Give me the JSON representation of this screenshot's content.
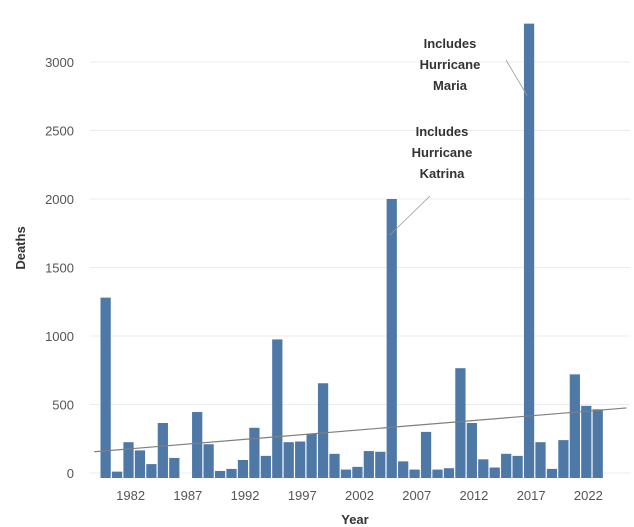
{
  "chart_data": {
    "type": "bar",
    "xlabel": "Year",
    "ylabel": "Deaths",
    "ylim": [
      0,
      3300
    ],
    "yticks": [
      0,
      500,
      1000,
      1500,
      2000,
      2500,
      3000
    ],
    "xticks": [
      1982,
      1987,
      1992,
      1997,
      2002,
      2007,
      2012,
      2017,
      2022
    ],
    "grid": true,
    "trendline": {
      "from_year": 1979.5,
      "to_year": 2025.5,
      "start_value": 155,
      "end_value": 475
    },
    "annotations": [
      {
        "lines": [
          "Includes",
          "Hurricane",
          "Katrina"
        ],
        "year": 2005
      },
      {
        "lines": [
          "Includes",
          "Hurricane",
          "Maria"
        ],
        "year": 2017
      }
    ],
    "colors": {
      "bar": "#4e79a7",
      "trend": "#7f7f7f"
    },
    "years": [
      1980,
      1981,
      1982,
      1983,
      1984,
      1985,
      1986,
      1987,
      1988,
      1989,
      1990,
      1991,
      1992,
      1993,
      1994,
      1995,
      1996,
      1997,
      1998,
      1999,
      2000,
      2001,
      2002,
      2003,
      2004,
      2005,
      2006,
      2007,
      2008,
      2009,
      2010,
      2011,
      2012,
      2013,
      2014,
      2015,
      2016,
      2017,
      2018,
      2019,
      2020,
      2021,
      2022,
      2023,
      2024
    ],
    "values": [
      1280,
      10,
      225,
      165,
      65,
      365,
      110,
      0,
      445,
      210,
      15,
      30,
      95,
      330,
      125,
      975,
      225,
      230,
      285,
      655,
      140,
      25,
      45,
      160,
      155,
      2000,
      85,
      25,
      300,
      25,
      35,
      765,
      365,
      100,
      40,
      140,
      125,
      3280,
      225,
      30,
      240,
      720,
      490,
      465,
      0
    ]
  }
}
